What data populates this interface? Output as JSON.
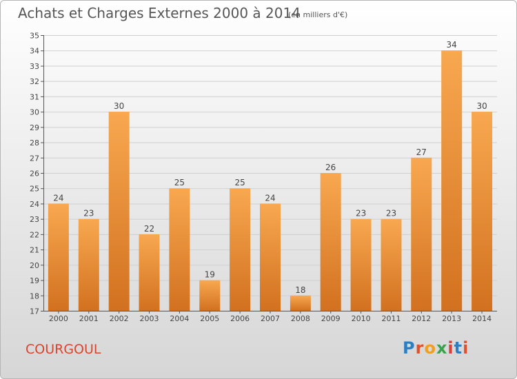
{
  "header": {
    "title": "Achats et Charges Externes 2000 à 2014",
    "subtitle": "(en milliers d'€)"
  },
  "footer": {
    "commune": "COURGOUL",
    "logo_text": "Proxiti",
    "logo_colors": [
      "#2e7fc1",
      "#e0502a",
      "#f0a020",
      "#3aa24a",
      "#d8403a",
      "#2e7fc1",
      "#e0502a"
    ]
  },
  "chart_data": {
    "type": "bar",
    "title": "Achats et Charges Externes 2000 à 2014",
    "subtitle": "(en milliers d'€)",
    "categories": [
      "2000",
      "2001",
      "2002",
      "2003",
      "2004",
      "2005",
      "2006",
      "2007",
      "2008",
      "2009",
      "2010",
      "2011",
      "2012",
      "2013",
      "2014"
    ],
    "values": [
      24,
      23,
      30,
      22,
      25,
      19,
      25,
      24,
      18,
      26,
      23,
      23,
      27,
      34,
      30
    ],
    "ylim": [
      17,
      35
    ],
    "yticks": [
      17,
      18,
      19,
      20,
      21,
      22,
      23,
      24,
      25,
      26,
      27,
      28,
      29,
      30,
      31,
      32,
      33,
      34,
      35
    ],
    "grid": true,
    "bar_color_top": "#f8a850",
    "bar_color_bottom": "#d2711f",
    "show_value_labels": true
  }
}
